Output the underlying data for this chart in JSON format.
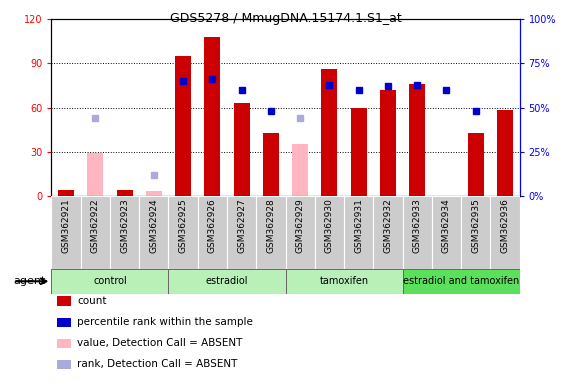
{
  "title": "GDS5278 / MmugDNA.15174.1.S1_at",
  "samples": [
    "GSM362921",
    "GSM362922",
    "GSM362923",
    "GSM362924",
    "GSM362925",
    "GSM362926",
    "GSM362927",
    "GSM362928",
    "GSM362929",
    "GSM362930",
    "GSM362931",
    "GSM362932",
    "GSM362933",
    "GSM362934",
    "GSM362935",
    "GSM362936"
  ],
  "count_values": [
    4,
    null,
    4,
    3,
    95,
    108,
    63,
    43,
    null,
    86,
    60,
    72,
    76,
    null,
    43,
    58
  ],
  "rank_values": [
    null,
    null,
    null,
    null,
    65,
    66,
    60,
    48,
    null,
    63,
    60,
    62,
    63,
    60,
    48,
    null
  ],
  "absent_count": [
    null,
    29,
    null,
    3,
    null,
    null,
    null,
    null,
    35,
    null,
    null,
    null,
    null,
    null,
    null,
    null
  ],
  "absent_rank": [
    null,
    44,
    null,
    12,
    null,
    null,
    null,
    null,
    44,
    null,
    null,
    null,
    null,
    null,
    null,
    null
  ],
  "groups": [
    {
      "label": "control",
      "start": 0,
      "end": 4,
      "color": "#b8f0b8"
    },
    {
      "label": "estradiol",
      "start": 4,
      "end": 8,
      "color": "#b8f0b8"
    },
    {
      "label": "tamoxifen",
      "start": 8,
      "end": 12,
      "color": "#b8f0b8"
    },
    {
      "label": "estradiol and tamoxifen",
      "start": 12,
      "end": 16,
      "color": "#5ae05a"
    }
  ],
  "ylim_left": [
    0,
    120
  ],
  "ylim_right": [
    0,
    100
  ],
  "bar_color_present": "#cc0000",
  "bar_color_absent": "#ffb6c1",
  "dot_color_present": "#0000cc",
  "dot_color_absent": "#aaaadd",
  "bar_width": 0.55,
  "legend_items": [
    {
      "color": "#cc0000",
      "label": "count"
    },
    {
      "color": "#0000cc",
      "label": "percentile rank within the sample"
    },
    {
      "color": "#ffb6c1",
      "label": "value, Detection Call = ABSENT"
    },
    {
      "color": "#aaaadd",
      "label": "rank, Detection Call = ABSENT"
    }
  ]
}
